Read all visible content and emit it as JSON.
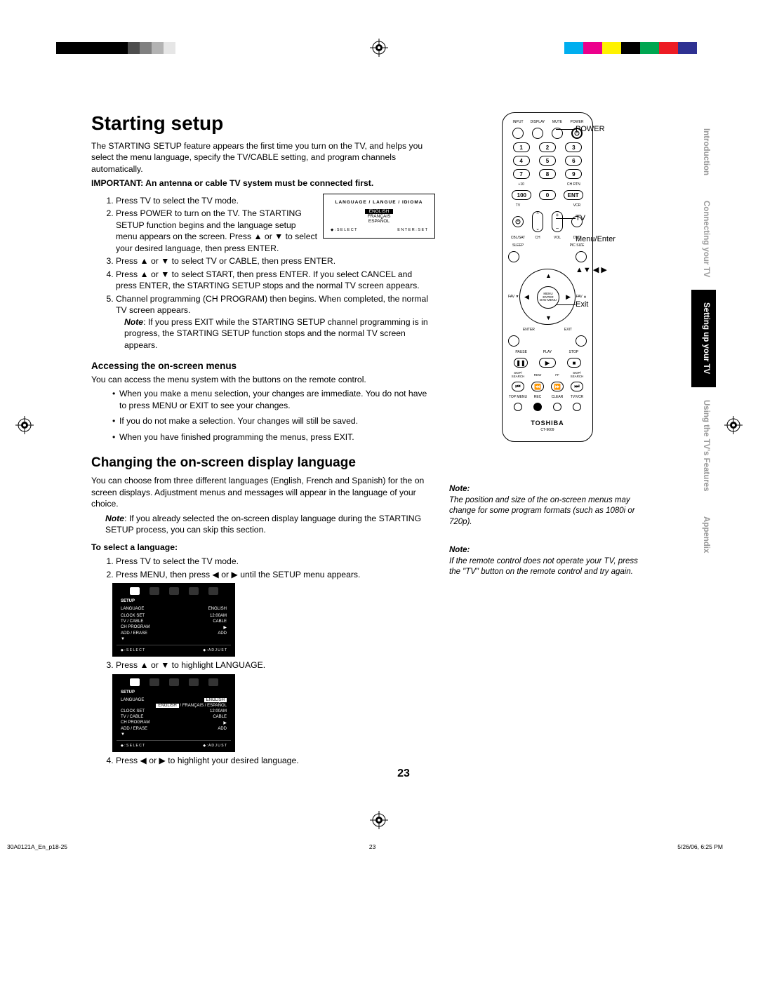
{
  "marks": {
    "left_colors": [
      "#000",
      "#000",
      "#000",
      "#000",
      "#000",
      "#000",
      "#4d4d4d",
      "#808080",
      "#b3b3b3",
      "#e6e6e6",
      "#fff"
    ],
    "right_colors": [
      "#00aeef",
      "#ec008c",
      "#fff200",
      "#000",
      "#00a651",
      "#ed1c24",
      "#2e3192",
      "#fff"
    ]
  },
  "title": "Starting setup",
  "intro": "The STARTING SETUP feature appears the first time you turn on the TV, and helps you select the menu language, specify the TV/CABLE setting, and program channels automatically.",
  "important": "IMPORTANT: An antenna or cable TV system must be connected first.",
  "steps": [
    "Press TV to select the TV mode.",
    "Press POWER to turn on the TV. The STARTING SETUP function begins and the language setup menu appears on the screen. Press ▲ or ▼ to select your desired language, then press ENTER.",
    "Press ▲ or ▼ to select TV or CABLE, then press ENTER.",
    "Press ▲ or ▼ to select START, then press ENTER. If you select CANCEL and press ENTER, the STARTING SETUP stops and the normal TV screen appears.",
    "Channel programming (CH PROGRAM) then begins. When completed, the normal TV screen appears."
  ],
  "step5_note_label": "Note",
  "step5_note": ": If you press EXIT while the STARTING SETUP channel programming is in progress, the STARTING SETUP function stops and the normal TV screen appears.",
  "lang_box": {
    "title": "LANGUAGE / LANGUE / IDIOMA",
    "opt1": "ENGLISH",
    "opt2": "FRANÇAIS",
    "opt3": "ESPAÑOL",
    "foot_l": "◆ : S E L E C T",
    "foot_r": "E N T E R : S E T"
  },
  "h3_access": "Accessing the on-screen menus",
  "access_intro": "You can access the menu system with the buttons on the remote control.",
  "access_bullets": [
    "When you make a menu selection, your changes are immediate. You do not have to press MENU or EXIT to see your changes.",
    "If you do not make a selection. Your changes will still be saved.",
    "When you have finished programming the menus, press EXIT."
  ],
  "h2_lang": "Changing the on-screen display language",
  "lang_intro": "You can choose from three different languages (English, French and Spanish) for the on screen displays. Adjustment menus and messages will appear in the language of your choice.",
  "lang_note_label": "Note",
  "lang_note": ":  If you already selected the on-screen display language during the STARTING SETUP process, you can skip this section.",
  "h4_select": "To select a language:",
  "select_steps": {
    "s1": "Press TV to select the TV mode.",
    "s2": "Press MENU, then press ◀ or ▶ until the SETUP menu appears.",
    "s3": "Press ▲ or ▼ to highlight LANGUAGE.",
    "s4": "Press ◀ or ▶ to highlight your desired language."
  },
  "setup1": {
    "title": "SETUP",
    "rows": [
      [
        "LANGUAGE",
        "ENGLISH"
      ],
      [
        "",
        ""
      ],
      [
        "CLOCK SET",
        "12:00AM"
      ],
      [
        "TV / CABLE",
        "CABLE"
      ],
      [
        "CH PROGRAM",
        "▶"
      ],
      [
        "ADD / ERASE",
        "ADD"
      ],
      [
        "▼",
        ""
      ]
    ],
    "foot_l": "◆ : S E L E C T",
    "foot_r": "◆ : A D J U S T"
  },
  "setup2": {
    "title": "SETUP",
    "rows": [
      [
        "LANGUAGE",
        "ENGLISH"
      ],
      [
        "",
        "ENGLISH / FRANÇAIS / ESPAÑOL"
      ],
      [
        "CLOCK SET",
        "12:00AM"
      ],
      [
        "TV / CABLE",
        "CABLE"
      ],
      [
        "CH PROGRAM",
        "▶"
      ],
      [
        "ADD / ERASE",
        "ADD"
      ],
      [
        "▼",
        ""
      ]
    ],
    "foot_l": "◆ : S E L E C T",
    "foot_r": "◆ : A D J U S T"
  },
  "tabs": [
    {
      "label": "Introduction",
      "active": false
    },
    {
      "label": "Connecting your TV",
      "active": false
    },
    {
      "label": "Setting up your TV",
      "active": true
    },
    {
      "label": "Using the TV's Features",
      "active": false
    },
    {
      "label": "Appendix",
      "active": false
    }
  ],
  "remote": {
    "top_labels": [
      "INPUT",
      "DISPLAY",
      "MUTE",
      "POWER"
    ],
    "nums": [
      [
        "1",
        "2",
        "3"
      ],
      [
        "4",
        "5",
        "6"
      ],
      [
        "7",
        "8",
        "9"
      ],
      [
        "100",
        "0",
        "ENT"
      ]
    ],
    "sub_labels": {
      "r4l": "+10",
      "r4r": "CH RTN"
    },
    "row5_labels": [
      "TV",
      "",
      "",
      "VCR"
    ],
    "row6_labels": [
      "CBL/SAT",
      "CH",
      "VOL",
      "DVD"
    ],
    "row7_labels": [
      "SLEEP",
      "",
      "",
      "PIC SIZE"
    ],
    "fav_l": "FAV ▼",
    "fav_r": "FAV ▲",
    "dpad_center": "MENU\nENTER\nDVD MENU",
    "enter": "ENTER",
    "exit": "EXIT",
    "play_row": [
      "PAUSE",
      "PLAY",
      "STOP"
    ],
    "skip_row": [
      "SKIP/\nSEARCH",
      "REW",
      "FF",
      "SKIP/\nSEARCH"
    ],
    "bottom_row": [
      "TOP MENU",
      "REC",
      "CLEAR",
      "TV/VCR"
    ],
    "brand": "TOSHIBA",
    "model": "CT-9009"
  },
  "callouts": {
    "power": "POWER",
    "tv": "TV",
    "menu": "Menu/Enter",
    "arrows": "▲▼ ◀ ▶",
    "exit": "Exit"
  },
  "note1_label": "Note:",
  "note1": "The position and size of the on-screen menus may change for some program formats (such as 1080i or 720p).",
  "note2_label": "Note:",
  "note2": "If the remote control does not operate your TV, press the \"TV\" button on the remote control and try again.",
  "page_num": "23",
  "footer": {
    "file": "30A0121A_En_p18-25",
    "pg": "23",
    "date": "5/26/06, 6:25 PM"
  }
}
